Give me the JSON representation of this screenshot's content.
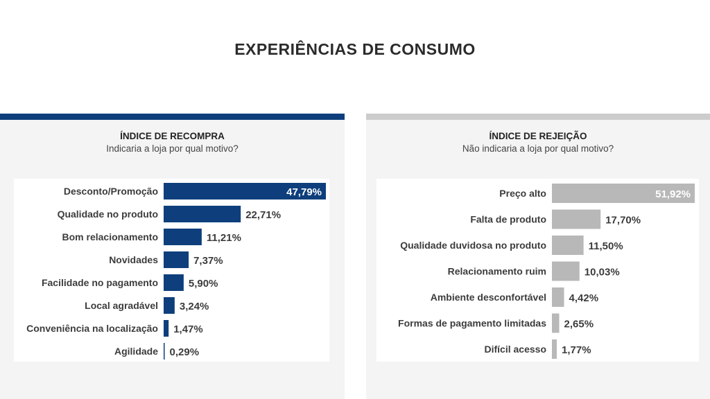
{
  "title": "EXPERIÊNCIAS DE CONSUMO",
  "chart_data": [
    {
      "type": "bar",
      "orientation": "horizontal",
      "title": "ÍNDICE DE RECOMPRA",
      "subtitle": "Indicaria a loja por qual motivo?",
      "categories": [
        "Desconto/Promoção",
        "Qualidade no produto",
        "Bom relacionamento",
        "Novidades",
        "Facilidade no pagamento",
        "Local agradável",
        "Conveniência na localização",
        "Agilidade"
      ],
      "values": [
        47.79,
        22.71,
        11.21,
        7.37,
        5.9,
        3.24,
        1.47,
        0.29
      ],
      "labels": [
        "47,79%",
        "22,71%",
        "11,21%",
        "7,37%",
        "5,90%",
        "3,24%",
        "1,47%",
        "0,29%"
      ],
      "color": "#0e3f7c"
    },
    {
      "type": "bar",
      "orientation": "horizontal",
      "title": "ÍNDICE DE REJEIÇÃO",
      "subtitle": "Não indicaria a loja por qual motivo?",
      "categories": [
        "Preço alto",
        "Falta de produto",
        "Qualidade duvidosa no produto",
        "Relacionamento ruim",
        "Ambiente desconfortável",
        "Formas de pagamento limitadas",
        "Difícil acesso"
      ],
      "values": [
        51.92,
        17.7,
        11.5,
        10.03,
        4.42,
        2.65,
        1.77
      ],
      "labels": [
        "51,92%",
        "17,70%",
        "11,50%",
        "10,03%",
        "4,42%",
        "2,65%",
        "1,77%"
      ],
      "color": "#b8b8b8"
    }
  ]
}
